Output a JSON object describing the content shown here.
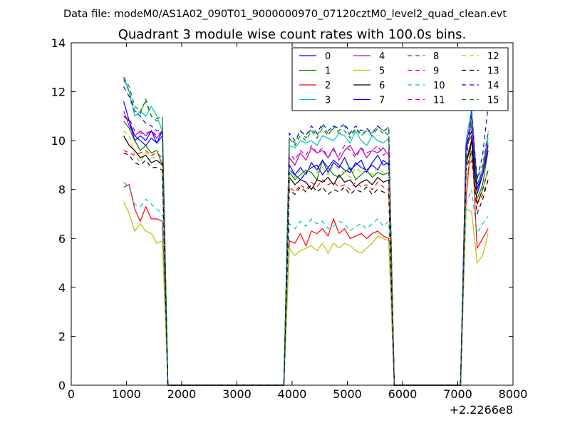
{
  "chart_data": {
    "type": "line",
    "suptitle": "Data file: modeM0/AS1A02_090T01_9000000970_07120cztM0_level2_quad_clean.evt",
    "title": "Quadrant 3 module wise count rates with 100.0s bins.",
    "xlabel": "",
    "ylabel": "",
    "x_offset_label": "+2.2266e8",
    "xlim": [
      0,
      8000
    ],
    "ylim": [
      0,
      14
    ],
    "xticks": [
      0,
      1000,
      2000,
      3000,
      4000,
      5000,
      6000,
      7000,
      8000
    ],
    "yticks": [
      0,
      2,
      4,
      6,
      8,
      10,
      12,
      14
    ],
    "grid": false,
    "legend": {
      "position": "top-right",
      "columns": 4
    },
    "segments": [
      {
        "x": [
          950,
          1050,
          1150,
          1250,
          1350,
          1450,
          1550,
          1650,
          1750,
          1850
        ]
      },
      {
        "x": [
          3850,
          3950,
          4050,
          4150,
          4250,
          4350,
          4450,
          4550,
          4650,
          4750,
          4850,
          4950,
          5050,
          5150,
          5250,
          5350,
          5450,
          5550,
          5650,
          5750,
          5850,
          5950
        ]
      },
      {
        "x": [
          7050,
          7150,
          7250,
          7350,
          7450,
          7550
        ]
      }
    ],
    "zeros_between_segments": true,
    "series": [
      {
        "name": "0",
        "color": "#0000ff",
        "style": "solid",
        "segments": [
          [
            11.0,
            10.8,
            10.2,
            10.0,
            9.8,
            10.1,
            9.9,
            10.2,
            0,
            0
          ],
          [
            0,
            8.8,
            8.6,
            8.4,
            8.7,
            8.9,
            9.0,
            8.6,
            8.9,
            9.2,
            9.0,
            8.8,
            8.7,
            9.1,
            8.9,
            8.8,
            9.0,
            8.8,
            9.2,
            9.0,
            0,
            0
          ],
          [
            0,
            9.8,
            10.2,
            7.8,
            8.6,
            9.8
          ]
        ]
      },
      {
        "name": "1",
        "color": "#008000",
        "style": "solid",
        "segments": [
          [
            10.8,
            10.5,
            10.0,
            9.6,
            9.8,
            9.5,
            9.6,
            9.0,
            0,
            0
          ],
          [
            0,
            8.7,
            8.4,
            8.6,
            8.8,
            8.7,
            8.4,
            9.2,
            8.9,
            8.6,
            8.5,
            8.7,
            8.9,
            8.4,
            8.6,
            8.8,
            8.5,
            8.7,
            8.6,
            8.7,
            0,
            0
          ],
          [
            0,
            9.2,
            10.0,
            7.6,
            8.2,
            9.6
          ]
        ]
      },
      {
        "name": "2",
        "color": "#ff0000",
        "style": "solid",
        "segments": [
          [
            8.1,
            8.2,
            7.2,
            6.7,
            7.3,
            6.8,
            6.8,
            6.7,
            0,
            0
          ],
          [
            0,
            5.9,
            5.8,
            6.2,
            5.7,
            6.3,
            6.2,
            6.4,
            6.1,
            6.8,
            6.2,
            6.4,
            6.0,
            6.1,
            6.2,
            6.0,
            6.2,
            6.3,
            6.1,
            6.0,
            0,
            0
          ],
          [
            0,
            7.6,
            10.2,
            5.6,
            6.0,
            6.4
          ]
        ]
      },
      {
        "name": "3",
        "color": "#00bfbf",
        "style": "solid",
        "segments": [
          [
            12.6,
            12.0,
            11.0,
            11.2,
            11.0,
            11.4,
            11.0,
            10.4,
            0,
            0
          ],
          [
            0,
            9.8,
            9.7,
            10.0,
            9.9,
            10.0,
            9.8,
            10.2,
            10.1,
            10.0,
            10.3,
            10.2,
            9.9,
            10.4,
            10.0,
            9.8,
            10.2,
            10.0,
            9.9,
            10.1,
            0,
            0
          ],
          [
            0,
            10.0,
            11.3,
            8.2,
            8.8,
            10.1
          ]
        ]
      },
      {
        "name": "4",
        "color": "#bf00bf",
        "style": "solid",
        "segments": [
          [
            11.2,
            10.6,
            10.2,
            10.4,
            10.2,
            10.4,
            10.1,
            10.4,
            0,
            0
          ],
          [
            0,
            9.3,
            9.0,
            9.5,
            9.2,
            9.7,
            9.5,
            9.6,
            9.3,
            9.7,
            9.2,
            9.6,
            9.8,
            9.4,
            9.7,
            9.3,
            9.6,
            9.5,
            9.7,
            9.4,
            0,
            0
          ],
          [
            0,
            9.8,
            11.0,
            8.0,
            8.8,
            9.9
          ]
        ]
      },
      {
        "name": "5",
        "color": "#bfbf00",
        "style": "solid",
        "segments": [
          [
            7.5,
            7.0,
            6.3,
            6.6,
            6.3,
            6.2,
            5.8,
            5.9,
            0,
            0
          ],
          [
            0,
            5.6,
            5.3,
            5.5,
            5.6,
            5.7,
            5.5,
            5.8,
            5.4,
            5.8,
            5.6,
            5.8,
            5.7,
            5.5,
            5.4,
            5.6,
            5.8,
            6.1,
            6.0,
            5.9,
            0,
            0
          ],
          [
            0,
            7.2,
            7.1,
            5.0,
            5.3,
            6.2
          ]
        ]
      },
      {
        "name": "6",
        "color": "#000000",
        "style": "solid",
        "segments": [
          [
            10.2,
            9.8,
            9.6,
            9.3,
            9.4,
            9.1,
            9.2,
            9.0,
            0,
            0
          ],
          [
            0,
            8.5,
            8.2,
            8.4,
            8.3,
            8.0,
            8.4,
            8.3,
            8.5,
            8.2,
            8.6,
            8.3,
            8.4,
            8.1,
            8.3,
            8.4,
            8.2,
            8.5,
            8.3,
            8.4,
            0,
            0
          ],
          [
            0,
            9.0,
            10.0,
            7.4,
            8.0,
            8.8
          ]
        ]
      },
      {
        "name": "7",
        "color": "#0000ff",
        "style": "solid",
        "segments": [
          [
            11.6,
            10.8,
            10.0,
            10.2,
            10.0,
            10.4,
            9.9,
            10.4,
            0,
            0
          ],
          [
            0,
            9.0,
            8.6,
            8.9,
            8.6,
            9.1,
            8.8,
            9.2,
            8.7,
            9.1,
            8.9,
            9.3,
            8.8,
            9.0,
            9.2,
            8.7,
            9.1,
            9.4,
            9.0,
            9.1,
            0,
            0
          ],
          [
            0,
            9.8,
            10.4,
            8.0,
            8.6,
            9.6
          ]
        ]
      },
      {
        "name": "8",
        "color": "#008000",
        "style": "dashed",
        "segments": [
          [
            12.6,
            12.2,
            11.4,
            11.2,
            11.6,
            11.0,
            10.8,
            10.8,
            0,
            0
          ],
          [
            0,
            10.1,
            9.8,
            10.2,
            10.0,
            10.4,
            10.1,
            10.5,
            10.2,
            10.6,
            10.3,
            10.4,
            10.1,
            10.5,
            10.2,
            10.4,
            10.3,
            10.6,
            10.4,
            10.2,
            0,
            0
          ],
          [
            0,
            9.4,
            11.0,
            8.4,
            9.0,
            10.3
          ]
        ]
      },
      {
        "name": "9",
        "color": "#ff0000",
        "style": "dashed",
        "segments": [
          [
            9.6,
            9.5,
            9.4,
            9.5,
            9.6,
            9.4,
            9.5,
            9.3,
            0,
            0
          ],
          [
            0,
            8.1,
            7.9,
            8.2,
            8.0,
            8.3,
            8.1,
            8.4,
            8.2,
            8.3,
            8.1,
            8.2,
            8.0,
            8.3,
            8.1,
            8.2,
            8.0,
            8.3,
            8.1,
            8.0,
            0,
            0
          ],
          [
            0,
            8.6,
            9.2,
            7.4,
            7.8,
            8.4
          ]
        ]
      },
      {
        "name": "10",
        "color": "#00bfbf",
        "style": "dashed",
        "segments": [
          [
            8.3,
            8.1,
            7.4,
            7.3,
            7.6,
            7.4,
            7.2,
            7.0,
            0,
            0
          ],
          [
            0,
            6.6,
            6.4,
            6.7,
            6.5,
            6.8,
            6.6,
            6.7,
            6.4,
            6.5,
            6.7,
            6.6,
            6.3,
            6.5,
            6.6,
            6.4,
            6.6,
            6.8,
            6.5,
            6.7,
            0,
            0
          ],
          [
            0,
            7.4,
            8.0,
            6.2,
            6.6,
            6.9
          ]
        ]
      },
      {
        "name": "11",
        "color": "#bf00bf",
        "style": "dashed",
        "segments": [
          [
            11.0,
            10.9,
            10.4,
            10.3,
            10.3,
            10.4,
            10.2,
            10.4,
            0,
            0
          ],
          [
            0,
            9.5,
            9.2,
            9.6,
            9.4,
            9.8,
            9.5,
            9.7,
            9.3,
            9.6,
            9.4,
            9.8,
            9.6,
            9.3,
            9.7,
            9.5,
            9.6,
            9.8,
            9.4,
            9.6,
            0,
            0
          ],
          [
            0,
            9.6,
            10.6,
            8.2,
            8.8,
            9.7
          ]
        ]
      },
      {
        "name": "12",
        "color": "#bfbf00",
        "style": "dashed",
        "segments": [
          [
            10.4,
            10.2,
            9.4,
            9.1,
            9.5,
            9.4,
            9.2,
            9.1,
            0,
            0
          ],
          [
            0,
            8.8,
            8.5,
            8.8,
            8.6,
            9.0,
            8.7,
            8.9,
            8.6,
            9.0,
            8.8,
            8.7,
            8.5,
            8.9,
            8.7,
            8.8,
            8.6,
            8.9,
            8.7,
            8.8,
            0,
            0
          ],
          [
            0,
            8.4,
            9.4,
            7.6,
            8.0,
            8.8
          ]
        ]
      },
      {
        "name": "13",
        "color": "#000000",
        "style": "dashed",
        "segments": [
          [
            9.5,
            9.4,
            9.1,
            9.0,
            9.2,
            8.9,
            8.9,
            8.8,
            0,
            0
          ],
          [
            0,
            8.0,
            7.8,
            8.1,
            7.9,
            8.2,
            7.9,
            8.1,
            7.8,
            8.0,
            7.9,
            8.1,
            7.8,
            8.0,
            7.9,
            8.1,
            7.8,
            8.0,
            7.9,
            7.8,
            0,
            0
          ],
          [
            0,
            8.8,
            9.6,
            7.0,
            7.6,
            8.4
          ]
        ]
      },
      {
        "name": "14",
        "color": "#0000ff",
        "style": "dashed",
        "segments": [
          [
            12.2,
            11.8,
            11.2,
            11.0,
            10.7,
            10.6,
            10.4,
            10.4,
            0,
            0
          ],
          [
            0,
            10.3,
            10.0,
            10.4,
            10.2,
            10.6,
            10.3,
            10.7,
            10.4,
            10.6,
            10.5,
            10.7,
            10.3,
            10.6,
            10.4,
            10.5,
            10.3,
            10.6,
            10.4,
            10.5,
            0,
            0
          ],
          [
            0,
            9.4,
            11.2,
            8.4,
            9.4,
            11.4
          ]
        ]
      },
      {
        "name": "15",
        "color": "#008000",
        "style": "dashed",
        "segments": [
          [
            12.5,
            12.0,
            11.2,
            11.1,
            11.7,
            11.0,
            10.9,
            11.0,
            0,
            0
          ],
          [
            0,
            10.1,
            9.9,
            10.4,
            10.1,
            10.5,
            10.2,
            10.6,
            10.3,
            10.5,
            10.4,
            10.6,
            10.2,
            10.5,
            10.3,
            10.4,
            10.2,
            10.5,
            10.3,
            10.6,
            0,
            0
          ],
          [
            0,
            9.2,
            10.8,
            8.2,
            8.8,
            10.4
          ]
        ]
      }
    ]
  }
}
